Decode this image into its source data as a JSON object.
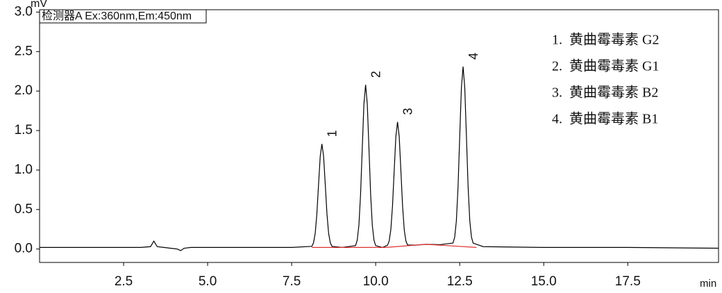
{
  "chart_data": {
    "type": "line",
    "y_unit": "mV",
    "x_unit": "min",
    "detector_label": "检测器A Ex:360nm,Em:450nm",
    "legend_text": [
      "1.  黄曲霉毒素 G2",
      "2.  黄曲霉毒素 G1",
      "3.  黄曲霉毒素 B2",
      "4.  黄曲霉毒素 B1"
    ],
    "peak_labels": [
      "1",
      "2",
      "3",
      "4"
    ],
    "xlim": [
      0,
      20.2
    ],
    "ylim": [
      -0.17,
      3.03
    ],
    "xticks": [
      2.5,
      {
        "value": 5,
        "label": "5.0"
      },
      7.5,
      {
        "value": 10,
        "label": "10.0"
      },
      12.5,
      {
        "value": 15,
        "label": "15.0"
      },
      17.5
    ],
    "yticks": [
      {
        "value": 0,
        "label": "0.0"
      },
      0.5,
      {
        "value": 1,
        "label": "1.0"
      },
      1.5,
      {
        "value": 2,
        "label": "2.0"
      },
      2.5,
      {
        "value": 3,
        "label": "3.0"
      }
    ],
    "series": [
      {
        "color": "#000000",
        "x": [
          0,
          1,
          2,
          3,
          3.3,
          3.4,
          3.5,
          3.7,
          4.1,
          4.2,
          4.3,
          4.5,
          6,
          7.5,
          8.1,
          8.15,
          8.2,
          8.25,
          8.3,
          8.35,
          8.4,
          8.45,
          8.5,
          8.55,
          8.6,
          8.65,
          8.7,
          9.0,
          9.4,
          9.45,
          9.5,
          9.55,
          9.6,
          9.65,
          9.7,
          9.75,
          9.8,
          9.85,
          9.9,
          9.95,
          10.0,
          10.2,
          10.35,
          10.4,
          10.45,
          10.5,
          10.55,
          10.6,
          10.65,
          10.7,
          10.75,
          10.8,
          10.85,
          10.9,
          10.95,
          11.2,
          11.5,
          11.9,
          12.3,
          12.35,
          12.4,
          12.45,
          12.5,
          12.55,
          12.6,
          12.65,
          12.7,
          12.75,
          12.8,
          12.85,
          12.9,
          13.2,
          15,
          17.5,
          20.2
        ],
        "values": [
          0.02,
          0.02,
          0.02,
          0.02,
          0.03,
          0.1,
          0.03,
          0.02,
          0.0,
          -0.02,
          0.01,
          0.02,
          0.02,
          0.02,
          0.034,
          0.078,
          0.197,
          0.446,
          0.815,
          1.175,
          1.33,
          1.175,
          0.815,
          0.446,
          0.197,
          0.078,
          0.034,
          0.02,
          0.043,
          0.111,
          0.298,
          0.69,
          1.27,
          1.837,
          2.08,
          1.837,
          1.27,
          0.69,
          0.298,
          0.111,
          0.043,
          0.02,
          0.047,
          0.1,
          0.243,
          0.544,
          0.989,
          1.424,
          1.61,
          1.424,
          0.989,
          0.544,
          0.243,
          0.1,
          0.05,
          0.05,
          0.06,
          0.055,
          0.075,
          0.149,
          0.355,
          0.785,
          1.422,
          2.043,
          2.31,
          2.043,
          1.422,
          0.785,
          0.355,
          0.149,
          0.075,
          0.03,
          0.02,
          0.02,
          0.01
        ]
      },
      {
        "color": "#e03030",
        "x": [
          8.1,
          8.9,
          9.4,
          10.2,
          10.3,
          11.5,
          13.0
        ],
        "values": [
          0.02,
          0.02,
          0.02,
          0.02,
          0.02,
          0.06,
          0.02
        ]
      }
    ]
  }
}
